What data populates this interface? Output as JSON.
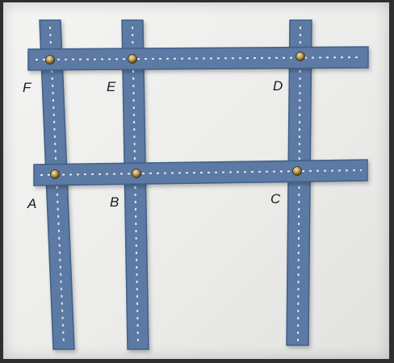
{
  "image": {
    "description_colors": {
      "background": "#ececea",
      "strip": "#5b7aa3",
      "strip_edge": "#3f5f8a",
      "dashes": "#dfe6f0",
      "rivet": "#b59a55"
    }
  },
  "labels": {
    "F": "F",
    "E": "E",
    "D": "D",
    "A": "A",
    "B": "B",
    "C": "C"
  }
}
